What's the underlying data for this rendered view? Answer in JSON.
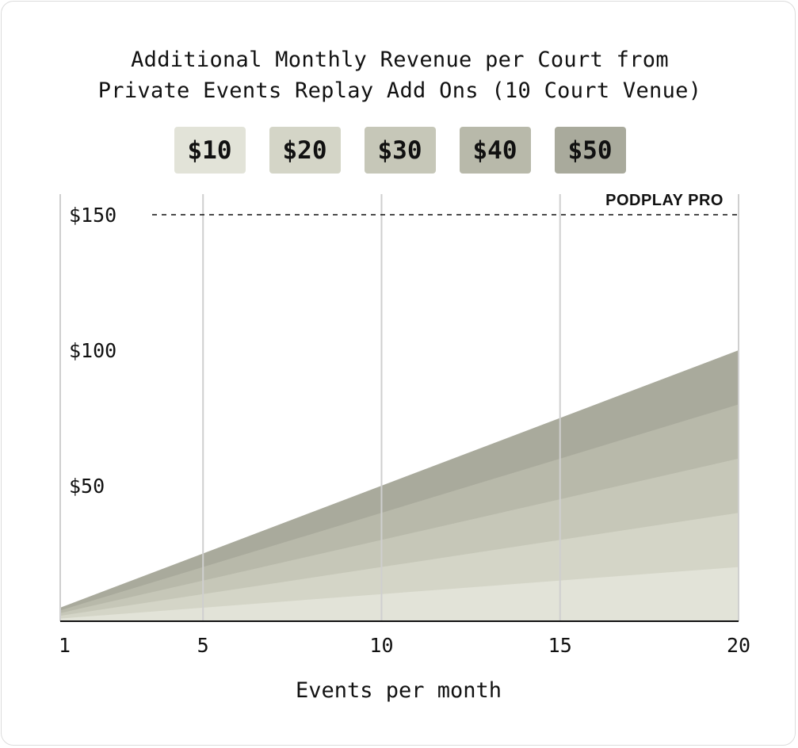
{
  "chart_data": {
    "type": "area",
    "title": [
      "Additional Monthly Revenue per Court from",
      "Private Events Replay Add Ons (10 Court Venue)"
    ],
    "xlabel": "Events per month",
    "ylabel": "",
    "x": [
      1,
      20
    ],
    "xticks": [
      "1",
      "5",
      "10",
      "15",
      "20"
    ],
    "xtick_values": [
      1,
      5,
      10,
      15,
      20
    ],
    "ylim": [
      0,
      160
    ],
    "xlim": [
      1,
      20
    ],
    "yticks": [
      {
        "value": 50,
        "label": "$50"
      },
      {
        "value": 100,
        "label": "$100"
      },
      {
        "value": 150,
        "label": "$150"
      }
    ],
    "legend_position": "top",
    "series": [
      {
        "name": "$10",
        "color": "#e2e3d8",
        "values": [
          1,
          20
        ]
      },
      {
        "name": "$20",
        "color": "#d4d5c7",
        "values": [
          2,
          40
        ]
      },
      {
        "name": "$30",
        "color": "#c6c7b8",
        "values": [
          3,
          60
        ]
      },
      {
        "name": "$40",
        "color": "#b8b9aa",
        "values": [
          4,
          80
        ]
      },
      {
        "name": "$50",
        "color": "#a9aa9c",
        "values": [
          5,
          100
        ]
      }
    ],
    "reference_line": {
      "value": 150,
      "label": "PODPLAY PRO"
    },
    "grid": {
      "vertical": true,
      "horizontal": false
    }
  }
}
